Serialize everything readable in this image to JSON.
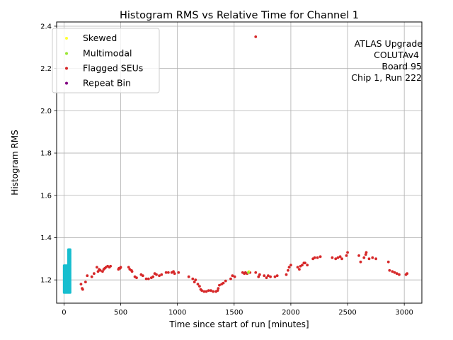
{
  "chart_data": {
    "type": "scatter",
    "title": "Histogram RMS vs Relative Time for Channel 1",
    "xlabel": "Time since start of run [minutes]",
    "ylabel": "Histogram RMS",
    "xlim": [
      -65,
      3155
    ],
    "ylim": [
      1.09,
      2.42
    ],
    "xticks": [
      0,
      500,
      1000,
      1500,
      2000,
      2500,
      3000
    ],
    "yticks": [
      1.2,
      1.4,
      1.6,
      1.8,
      2.0,
      2.2,
      2.4
    ],
    "grid": true,
    "legend_position": "upper-left",
    "annotation_lines": [
      "ATLAS Upgrade",
      "COLUTAv4",
      "Board 95",
      "Chip 1, Run 222"
    ],
    "legend": [
      {
        "label": "Skewed",
        "color": "#ffff33"
      },
      {
        "label": "Multimodal",
        "color": "#99e633"
      },
      {
        "label": "Flagged SEUs",
        "color": "#d62728"
      },
      {
        "label": "Repeat Bin",
        "color": "#800080"
      }
    ],
    "series": [
      {
        "name": "Flagged SEUs",
        "color": "#d62728",
        "x": [
          150,
          160,
          165,
          190,
          205,
          245,
          265,
          290,
          300,
          310,
          320,
          340,
          350,
          360,
          370,
          385,
          400,
          410,
          480,
          485,
          495,
          500,
          570,
          580,
          595,
          600,
          625,
          640,
          680,
          695,
          725,
          745,
          770,
          785,
          800,
          815,
          840,
          860,
          900,
          920,
          950,
          965,
          975,
          1010,
          1100,
          1135,
          1150,
          1160,
          1180,
          1195,
          1205,
          1215,
          1235,
          1255,
          1275,
          1295,
          1315,
          1340,
          1355,
          1360,
          1370,
          1390,
          1405,
          1425,
          1470,
          1485,
          1505,
          1575,
          1590,
          1600,
          1615,
          1640,
          1690,
          1715,
          1725,
          1765,
          1785,
          1800,
          1820,
          1860,
          1880,
          1960,
          1975,
          1985,
          2000,
          2060,
          2075,
          2085,
          2100,
          2115,
          2125,
          2145,
          2195,
          2210,
          2235,
          2260,
          2365,
          2395,
          2415,
          2435,
          2450,
          2490,
          2500,
          2600,
          2615,
          2645,
          2660,
          2665,
          2690,
          2720,
          2750,
          2860,
          2870,
          2895,
          2915,
          2935,
          2955,
          3015,
          3025,
          1690
        ],
        "y": [
          1.18,
          1.16,
          1.155,
          1.19,
          1.22,
          1.215,
          1.23,
          1.26,
          1.24,
          1.25,
          1.245,
          1.24,
          1.25,
          1.255,
          1.26,
          1.265,
          1.26,
          1.265,
          1.25,
          1.255,
          1.255,
          1.26,
          1.26,
          1.25,
          1.245,
          1.24,
          1.215,
          1.21,
          1.225,
          1.22,
          1.205,
          1.205,
          1.21,
          1.215,
          1.23,
          1.225,
          1.22,
          1.225,
          1.235,
          1.235,
          1.235,
          1.24,
          1.23,
          1.235,
          1.215,
          1.205,
          1.19,
          1.2,
          1.18,
          1.17,
          1.155,
          1.15,
          1.145,
          1.145,
          1.15,
          1.15,
          1.145,
          1.145,
          1.15,
          1.16,
          1.175,
          1.18,
          1.185,
          1.195,
          1.205,
          1.22,
          1.215,
          1.235,
          1.23,
          1.235,
          1.23,
          1.235,
          1.235,
          1.215,
          1.225,
          1.22,
          1.21,
          1.22,
          1.215,
          1.215,
          1.22,
          1.225,
          1.245,
          1.26,
          1.27,
          1.26,
          1.25,
          1.265,
          1.27,
          1.28,
          1.28,
          1.27,
          1.3,
          1.305,
          1.305,
          1.31,
          1.305,
          1.3,
          1.305,
          1.31,
          1.3,
          1.315,
          1.33,
          1.315,
          1.285,
          1.305,
          1.32,
          1.33,
          1.3,
          1.305,
          1.3,
          1.285,
          1.245,
          1.24,
          1.235,
          1.23,
          1.225,
          1.225,
          1.23,
          2.35
        ]
      },
      {
        "name": "Skewed",
        "color": "#ffff33",
        "x": [
          1630
        ],
        "y": [
          1.24
        ]
      },
      {
        "name": "Multimodal",
        "color": "#99e633",
        "x": [
          1625
        ],
        "y": [
          1.235
        ]
      }
    ],
    "dense_cluster": {
      "color": "#17becf",
      "x_min": 0,
      "x_max": 55,
      "y_min": 1.14,
      "y_max": 1.345
    }
  }
}
